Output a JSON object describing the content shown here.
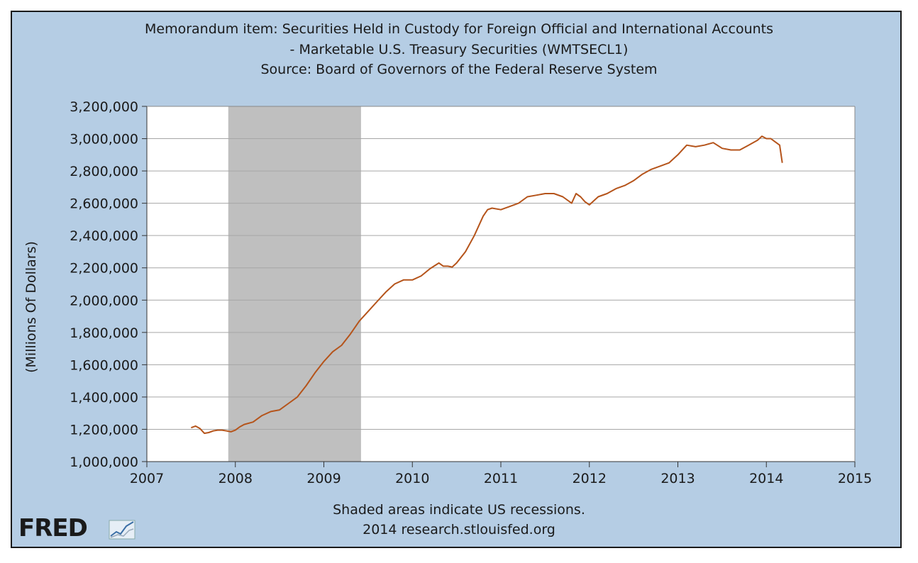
{
  "chart_data": {
    "type": "line",
    "title": [
      "Memorandum item: Securities Held in Custody for Foreign Official and International Accounts",
      "- Marketable U.S. Treasury Securities (WMTSECL1)",
      "Source: Board of Governors of the Federal Reserve System"
    ],
    "xlabel": "",
    "ylabel": "(Millions Of Dollars)",
    "xlim": [
      2007,
      2015
    ],
    "ylim": [
      1000000,
      3200000
    ],
    "x_ticks": [
      "2007",
      "2008",
      "2009",
      "2010",
      "2011",
      "2012",
      "2013",
      "2014",
      "2015"
    ],
    "y_ticks": [
      "1,000,000",
      "1,200,000",
      "1,400,000",
      "1,600,000",
      "1,800,000",
      "2,000,000",
      "2,200,000",
      "2,400,000",
      "2,600,000",
      "2,800,000",
      "3,000,000",
      "3,200,000"
    ],
    "grid": true,
    "recession": {
      "start": 2007.92,
      "end": 2009.42,
      "color": "#bfbfbf"
    },
    "series": [
      {
        "color": "#b5541b",
        "x": [
          2007.5,
          2007.55,
          2007.6,
          2007.65,
          2007.7,
          2007.75,
          2007.8,
          2007.85,
          2007.9,
          2007.95,
          2008.0,
          2008.05,
          2008.1,
          2008.2,
          2008.3,
          2008.4,
          2008.5,
          2008.6,
          2008.7,
          2008.8,
          2008.9,
          2009.0,
          2009.1,
          2009.2,
          2009.3,
          2009.4,
          2009.5,
          2009.6,
          2009.7,
          2009.8,
          2009.9,
          2010.0,
          2010.1,
          2010.2,
          2010.3,
          2010.35,
          2010.4,
          2010.45,
          2010.5,
          2010.6,
          2010.7,
          2010.8,
          2010.85,
          2010.9,
          2011.0,
          2011.1,
          2011.2,
          2011.3,
          2011.4,
          2011.5,
          2011.6,
          2011.7,
          2011.8,
          2011.85,
          2011.9,
          2011.95,
          2012.0,
          2012.1,
          2012.2,
          2012.3,
          2012.4,
          2012.5,
          2012.6,
          2012.7,
          2012.8,
          2012.9,
          2013.0,
          2013.1,
          2013.2,
          2013.3,
          2013.4,
          2013.5,
          2013.6,
          2013.7,
          2013.8,
          2013.9,
          2013.95,
          2014.0,
          2014.05,
          2014.1,
          2014.15,
          2014.18
        ],
        "values": [
          1210000,
          1220000,
          1205000,
          1175000,
          1180000,
          1190000,
          1195000,
          1195000,
          1190000,
          1185000,
          1195000,
          1215000,
          1230000,
          1245000,
          1285000,
          1310000,
          1320000,
          1360000,
          1400000,
          1470000,
          1550000,
          1620000,
          1680000,
          1720000,
          1790000,
          1870000,
          1930000,
          1990000,
          2050000,
          2100000,
          2125000,
          2125000,
          2150000,
          2195000,
          2230000,
          2210000,
          2210000,
          2205000,
          2230000,
          2300000,
          2400000,
          2520000,
          2560000,
          2570000,
          2560000,
          2580000,
          2600000,
          2640000,
          2650000,
          2660000,
          2660000,
          2640000,
          2600000,
          2660000,
          2640000,
          2610000,
          2590000,
          2640000,
          2660000,
          2690000,
          2710000,
          2740000,
          2780000,
          2810000,
          2830000,
          2850000,
          2900000,
          2960000,
          2950000,
          2960000,
          2975000,
          2940000,
          2930000,
          2930000,
          2960000,
          2990000,
          3015000,
          3000000,
          3000000,
          2980000,
          2960000,
          2850000
        ]
      }
    ],
    "footer": {
      "note": "Shaded areas indicate US recessions.",
      "credit": "2014 research.stlouisfed.org"
    },
    "logo": {
      "text": "FRED"
    }
  }
}
